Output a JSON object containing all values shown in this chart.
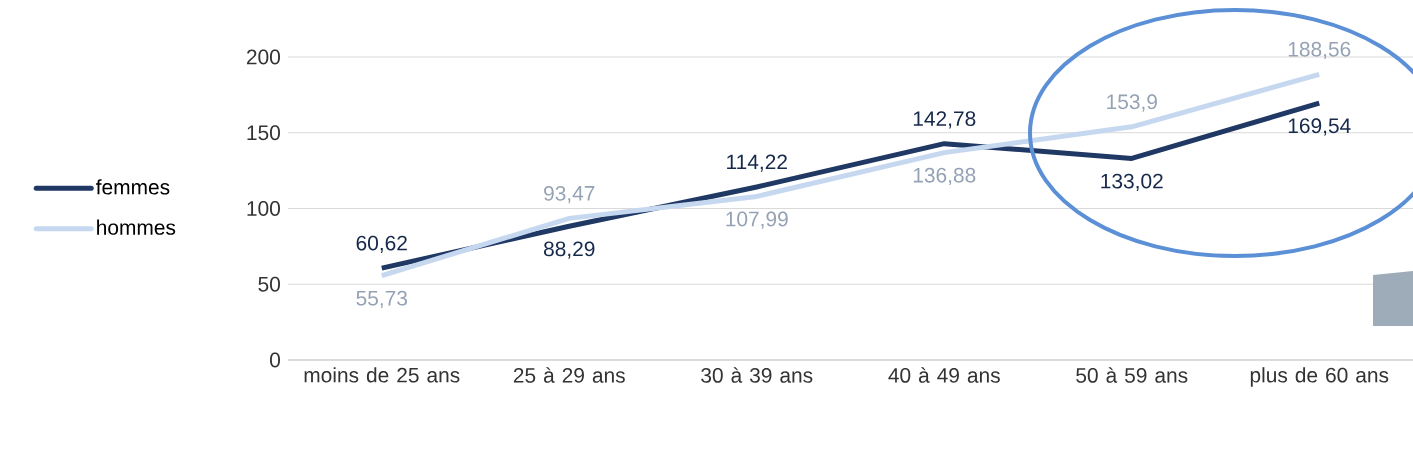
{
  "chart_data": {
    "type": "line",
    "categories": [
      "moins de 25 ans",
      "25 à 29 ans",
      "30 à 39 ans",
      "40 à 49 ans",
      "50 à 59 ans",
      "plus de 60 ans"
    ],
    "series": [
      {
        "name": "femmes",
        "color": "#1f3864",
        "values": [
          60.62,
          88.29,
          114.22,
          142.78,
          133.02,
          169.54
        ],
        "value_labels": [
          "60,62",
          "88,29",
          "114,22",
          "142,78",
          "133,02",
          "169,54"
        ]
      },
      {
        "name": "hommes",
        "color": "#c6d8f0",
        "values": [
          55.73,
          93.47,
          107.99,
          136.88,
          153.9,
          188.56
        ],
        "value_labels": [
          "55,73",
          "93,47",
          "107,99",
          "136,88",
          "153,9",
          "188,56"
        ]
      }
    ],
    "ylim": [
      0,
      200
    ],
    "yticks": [
      0,
      50,
      100,
      150,
      200
    ],
    "grid": "y",
    "legend": "left",
    "marker": "none",
    "line_style": "solid"
  }
}
